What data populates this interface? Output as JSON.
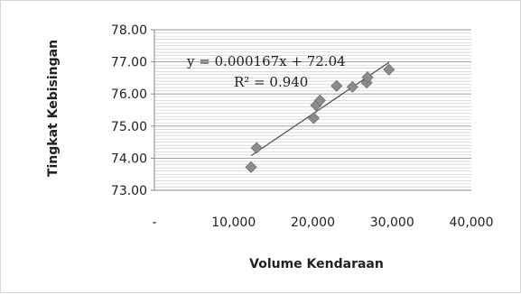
{
  "chart_data": {
    "type": "scatter",
    "xlabel": "Volume Kendaraan",
    "ylabel": "Tingkat Kebisingan",
    "xlim": [
      0,
      40000
    ],
    "ylim": [
      73.0,
      78.0
    ],
    "x_ticks": [
      0,
      10000,
      20000,
      30000,
      40000
    ],
    "x_tick_labels": [
      "-",
      "10,000",
      "20,000",
      "30,000",
      "40,000"
    ],
    "y_ticks": [
      73.0,
      74.0,
      75.0,
      76.0,
      77.0,
      78.0
    ],
    "y_tick_labels": [
      "73.00",
      "74.00",
      "75.00",
      "76.00",
      "77.00",
      "78.00"
    ],
    "grid": "horizontal",
    "legend": "none",
    "series": [
      {
        "points": [
          {
            "x": 12200,
            "y": 73.72
          },
          {
            "x": 12900,
            "y": 74.32
          },
          {
            "x": 20100,
            "y": 75.25
          },
          {
            "x": 20400,
            "y": 75.65
          },
          {
            "x": 20900,
            "y": 75.8
          },
          {
            "x": 23000,
            "y": 76.25
          },
          {
            "x": 25000,
            "y": 76.22
          },
          {
            "x": 26800,
            "y": 76.35
          },
          {
            "x": 26900,
            "y": 76.52
          },
          {
            "x": 29600,
            "y": 76.76
          }
        ],
        "marker_color": "#8c8c8c",
        "marker": "diamond"
      }
    ],
    "trendline": {
      "slope": 0.000167,
      "intercept": 72.04,
      "x_range": [
        12200,
        29600
      ],
      "color": "#555555"
    },
    "annotations": [
      "y = 0.000167x + 72.04",
      "R² = 0.940"
    ]
  }
}
